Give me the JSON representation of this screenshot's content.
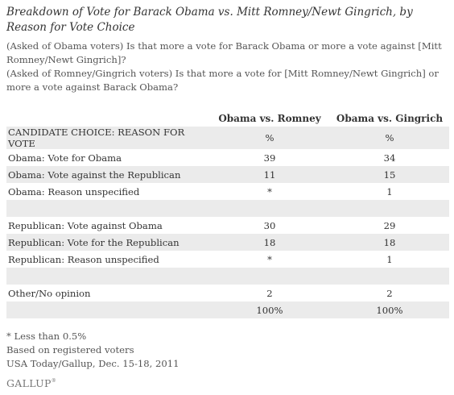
{
  "title": "Breakdown of Vote for Barack Obama vs. Mitt Romney/Newt Gingrich, by Reason for Vote Choice",
  "notes": [
    "(Asked of Obama voters) Is that more a vote for Barack Obama or more a vote against [Mitt Romney/Newt Gingrich]?",
    "(Asked of Romney/Gingrich voters) Is that more a vote for [Mitt Romney/Newt Gingrich] or more a vote against Barack Obama?"
  ],
  "table": {
    "columns": [
      "",
      "Obama vs. Romney",
      "Obama vs. Gingrich"
    ],
    "rows": [
      {
        "label": "CANDIDATE CHOICE: REASON FOR VOTE",
        "romney": "%",
        "gingrich": "%"
      },
      {
        "label": "Obama: Vote for Obama",
        "romney": "39",
        "gingrich": "34"
      },
      {
        "label": "Obama: Vote against the Republican",
        "romney": "11",
        "gingrich": "15"
      },
      {
        "label": "Obama: Reason unspecified",
        "romney": "*",
        "gingrich": "1"
      },
      {
        "label": "",
        "romney": "",
        "gingrich": ""
      },
      {
        "label": "Republican: Vote against Obama",
        "romney": "30",
        "gingrich": "29"
      },
      {
        "label": "Republican: Vote for the Republican",
        "romney": "18",
        "gingrich": "18"
      },
      {
        "label": "Republican: Reason unspecified",
        "romney": "*",
        "gingrich": "1"
      },
      {
        "label": "",
        "romney": "",
        "gingrich": ""
      },
      {
        "label": "Other/No opinion",
        "romney": "2",
        "gingrich": "2"
      },
      {
        "label": "",
        "romney": "100%",
        "gingrich": "100%"
      }
    ]
  },
  "footnotes": [
    "* Less than 0.5%",
    "Based on registered voters",
    "USA Today/Gallup, Dec. 15-18, 2011"
  ],
  "logo": "GALLUP"
}
